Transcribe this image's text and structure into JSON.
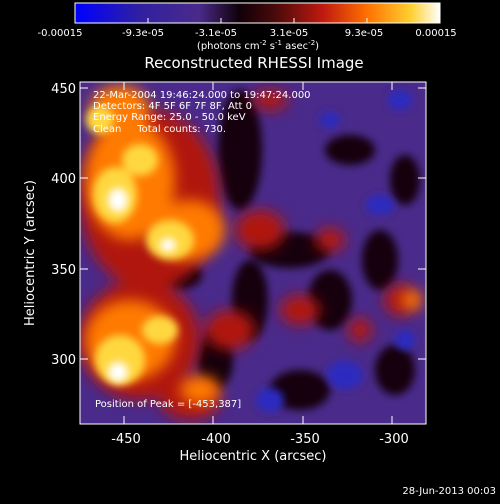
{
  "colorbar": {
    "tick_labels": [
      "-0.00015",
      "-9.3e-05",
      "-3.1e-05",
      "3.1e-05",
      "9.3e-05",
      "0.00015"
    ],
    "unit_main": "(photons cm",
    "unit_exp1": "-2",
    "unit_s": " s",
    "unit_exp2": "-1",
    "unit_asec": " asec",
    "unit_exp3": "-2",
    "unit_close": ")",
    "colors": [
      "#0000ff",
      "#3a1f8c",
      "#120010",
      "#6a1010",
      "#d02010",
      "#ff8000",
      "#ffd040",
      "#ffffff"
    ]
  },
  "image": {
    "title": "Reconstructed RHESSI Image",
    "info_lines": [
      "22-Mar-2004 19:46:24.000 to 19:47:24.000",
      "Detectors: 4F 5F 6F 7F 8F, Att 0",
      "Energy Range: 25.0 - 50.0 keV",
      "Clean     Total counts: 730."
    ],
    "peak_label": "Position of Peak = [-453,387]"
  },
  "axes": {
    "xlabel": "Heliocentric X (arcsec)",
    "ylabel": "Heliocentric Y (arcsec)",
    "x_ticks": [
      "-450",
      "-400",
      "-350",
      "-300"
    ],
    "y_ticks": [
      "300",
      "350",
      "400",
      "450"
    ]
  },
  "footer": {
    "date": "28-Jun-2013 00:03"
  }
}
